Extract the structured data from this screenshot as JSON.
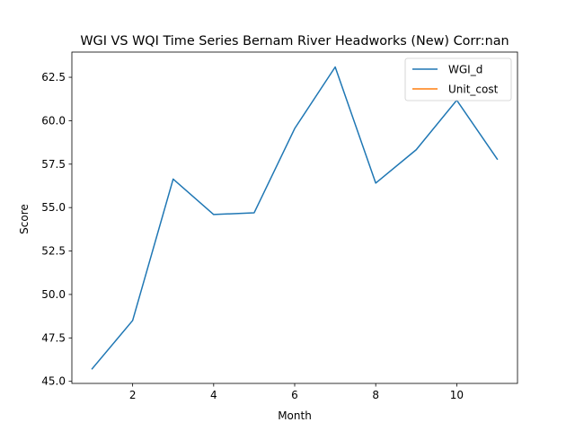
{
  "chart_data": {
    "type": "line",
    "title": "WGI VS WQI Time Series Bernam River Headworks (New) Corr:nan",
    "xlabel": "Month",
    "ylabel": "Score",
    "xlim": [
      0.5,
      11.5
    ],
    "ylim": [
      44.88,
      63.95
    ],
    "xticks": [
      2,
      4,
      6,
      8,
      10
    ],
    "yticks": [
      45.0,
      47.5,
      50.0,
      52.5,
      55.0,
      57.5,
      60.0,
      62.5
    ],
    "xtick_labels": [
      "2",
      "4",
      "6",
      "8",
      "10"
    ],
    "ytick_labels": [
      "45.0",
      "47.5",
      "50.0",
      "52.5",
      "55.0",
      "57.5",
      "60.0",
      "62.5"
    ],
    "grid": false,
    "legend_position": "top-right",
    "series": [
      {
        "name": "WGI_d",
        "color": "#1f77b4",
        "x": [
          1,
          2,
          3,
          4,
          5,
          6,
          7,
          8,
          9,
          10,
          11
        ],
        "values": [
          45.72,
          48.5,
          56.64,
          54.6,
          54.7,
          59.55,
          63.09,
          56.41,
          58.33,
          61.18,
          57.79
        ]
      },
      {
        "name": "Unit_cost",
        "color": "#ff7f0e",
        "x": [],
        "values": []
      }
    ]
  }
}
